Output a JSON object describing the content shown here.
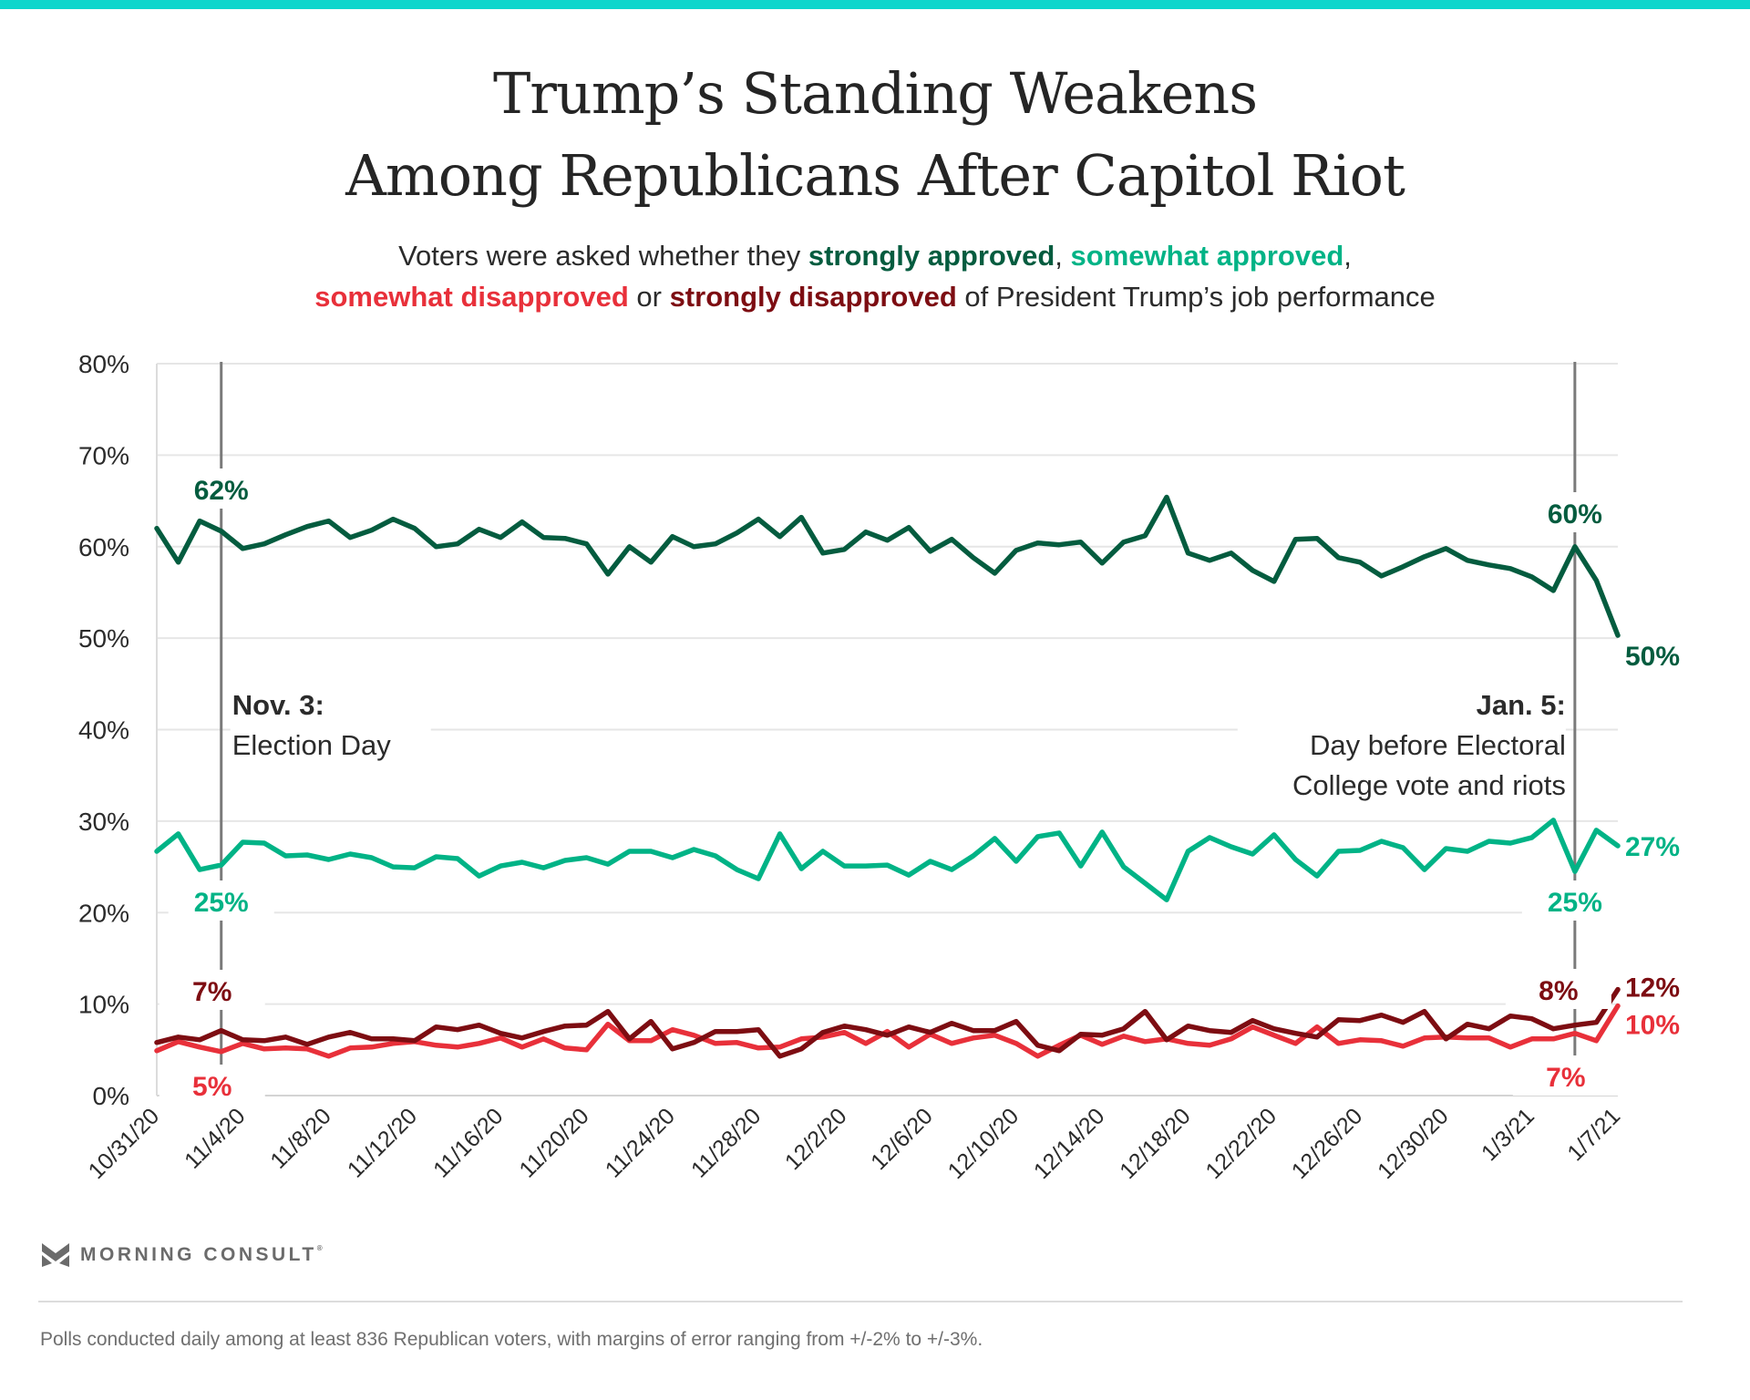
{
  "header": {
    "title_lines": [
      "Trump’s Standing Weakens",
      "Among Republicans After Capitol Riot"
    ],
    "subtitle": {
      "line1_prefix": "Voters were asked whether they ",
      "strongly_approved": "strongly approved",
      "comma1": ", ",
      "somewhat_approved": "somewhat approved",
      "comma2": ",",
      "somewhat_disapproved": "somewhat disapproved",
      "or": " or ",
      "strongly_disapproved": "strongly disapproved",
      "line2_suffix": " of President Trump’s job performance"
    }
  },
  "colors": {
    "accent_bar": "#0fd6cc",
    "strongly_approve": "#045c3f",
    "somewhat_approve": "#00b386",
    "somewhat_disapprove": "#e8303a",
    "strongly_disapprove": "#7d0d12",
    "annotation_line": "#7a7a7a",
    "grid": "#e6e6e6"
  },
  "chart_data": {
    "type": "line",
    "title": "Trump’s Standing Weakens Among Republicans After Capitol Riot",
    "xlabel": "",
    "ylabel": "",
    "ylim": [
      0,
      80
    ],
    "yticks": [
      0,
      10,
      20,
      30,
      40,
      50,
      60,
      70,
      80
    ],
    "ytick_labels": [
      "0%",
      "10%",
      "20%",
      "30%",
      "40%",
      "50%",
      "60%",
      "70%",
      "80%"
    ],
    "grid": true,
    "x_start": "10/31/20",
    "x_end": "1/7/21",
    "x_tick_every_n_points": 4,
    "x_tick_labels": [
      "10/31/20",
      "11/4/20",
      "11/8/20",
      "11/12/20",
      "11/16/20",
      "11/20/20",
      "11/24/20",
      "11/28/20",
      "12/2/20",
      "12/6/20",
      "12/10/20",
      "12/14/20",
      "12/18/20",
      "12/22/20",
      "12/26/20",
      "12/30/20",
      "1/3/21",
      "1/7/21"
    ],
    "series": [
      {
        "name": "Strongly approve",
        "key": "strongly_approve",
        "values": [
          62.0,
          58.3,
          62.8,
          61.7,
          59.8,
          60.3,
          61.3,
          62.2,
          62.8,
          61.0,
          61.8,
          63.0,
          62.0,
          60.0,
          60.3,
          61.9,
          61.0,
          62.7,
          61.0,
          60.9,
          60.3,
          57.0,
          60.0,
          58.3,
          61.1,
          60.0,
          60.3,
          61.5,
          63.0,
          61.1,
          63.2,
          59.3,
          59.7,
          61.6,
          60.7,
          62.1,
          59.5,
          60.8,
          58.8,
          57.1,
          59.6,
          60.4,
          60.2,
          60.5,
          58.2,
          60.5,
          61.2,
          65.4,
          59.3,
          58.5,
          59.3,
          57.4,
          56.2,
          60.8,
          60.9,
          58.8,
          58.3,
          56.8,
          57.8,
          58.9,
          59.8,
          58.5,
          58.0,
          57.6,
          56.7,
          55.2,
          60.0,
          56.3,
          50.3
        ]
      },
      {
        "name": "Somewhat approve",
        "key": "somewhat_approve",
        "values": [
          26.7,
          28.6,
          24.7,
          25.2,
          27.7,
          27.6,
          26.2,
          26.3,
          25.8,
          26.4,
          26.0,
          25.0,
          24.9,
          26.1,
          25.9,
          24.0,
          25.1,
          25.5,
          24.9,
          25.7,
          26.0,
          25.3,
          26.7,
          26.7,
          26.0,
          26.9,
          26.2,
          24.7,
          23.7,
          28.6,
          24.8,
          26.7,
          25.1,
          25.1,
          25.2,
          24.1,
          25.6,
          24.7,
          26.2,
          28.1,
          25.6,
          28.3,
          28.7,
          25.1,
          28.8,
          25.0,
          23.2,
          21.4,
          26.7,
          28.2,
          27.2,
          26.4,
          28.5,
          25.8,
          24.0,
          26.7,
          26.8,
          27.8,
          27.1,
          24.7,
          27.0,
          26.7,
          27.8,
          27.6,
          28.2,
          30.1,
          24.5,
          29.0,
          27.3
        ]
      },
      {
        "name": "Somewhat disapprove",
        "key": "somewhat_disapprove",
        "values": [
          4.9,
          5.9,
          5.3,
          4.8,
          5.7,
          5.1,
          5.2,
          5.1,
          4.3,
          5.2,
          5.3,
          5.7,
          5.9,
          5.5,
          5.3,
          5.7,
          6.3,
          5.3,
          6.2,
          5.2,
          5.0,
          7.8,
          6.0,
          6.0,
          7.2,
          6.6,
          5.7,
          5.8,
          5.2,
          5.3,
          6.2,
          6.4,
          6.9,
          5.7,
          7.0,
          5.3,
          6.7,
          5.7,
          6.3,
          6.6,
          5.7,
          4.3,
          5.5,
          6.6,
          5.6,
          6.5,
          5.9,
          6.2,
          5.7,
          5.5,
          6.2,
          7.5,
          6.6,
          5.7,
          7.5,
          5.7,
          6.1,
          6.0,
          5.4,
          6.3,
          6.4,
          6.3,
          6.3,
          5.3,
          6.2,
          6.2,
          6.8,
          6.0,
          9.8
        ]
      },
      {
        "name": "Strongly disapprove",
        "key": "strongly_disapprove",
        "values": [
          5.8,
          6.4,
          6.1,
          7.1,
          6.1,
          6.0,
          6.4,
          5.6,
          6.4,
          6.9,
          6.2,
          6.2,
          6.0,
          7.5,
          7.2,
          7.7,
          6.8,
          6.3,
          7.0,
          7.6,
          7.7,
          9.2,
          6.2,
          8.1,
          5.1,
          5.8,
          7.0,
          7.0,
          7.2,
          4.3,
          5.1,
          6.9,
          7.6,
          7.2,
          6.6,
          7.5,
          6.9,
          7.9,
          7.1,
          7.1,
          8.1,
          5.5,
          4.9,
          6.7,
          6.6,
          7.3,
          9.2,
          6.1,
          7.6,
          7.1,
          6.9,
          8.2,
          7.3,
          6.8,
          6.4,
          8.3,
          8.2,
          8.8,
          8.0,
          9.2,
          6.2,
          7.8,
          7.3,
          8.7,
          8.4,
          7.3,
          7.7,
          8.0,
          11.6
        ]
      }
    ],
    "annotations": [
      {
        "date": "11/3/20",
        "point_index": 3,
        "bold": "Nov. 3:",
        "lines": [
          "Election Day"
        ],
        "align": "left"
      },
      {
        "date": "1/5/21",
        "point_index": 66,
        "bold": "Jan. 5:",
        "lines": [
          "Day before Electoral",
          "College vote and riots"
        ],
        "align": "right"
      }
    ],
    "data_labels": [
      {
        "series": "strongly_approve",
        "point_index": 3,
        "text": "62%",
        "position": "above"
      },
      {
        "series": "somewhat_approve",
        "point_index": 3,
        "text": "25%",
        "position": "below"
      },
      {
        "series": "strongly_disapprove",
        "point_index": 3,
        "text": "7%",
        "position": "above"
      },
      {
        "series": "somewhat_disapprove",
        "point_index": 3,
        "text": "5%",
        "position": "below"
      },
      {
        "series": "strongly_approve",
        "point_index": 66,
        "text": "60%",
        "position": "above"
      },
      {
        "series": "somewhat_approve",
        "point_index": 66,
        "text": "25%",
        "position": "below"
      },
      {
        "series": "strongly_disapprove",
        "point_index": 66,
        "text": "8%",
        "position": "above"
      },
      {
        "series": "somewhat_disapprove",
        "point_index": 66,
        "text": "7%",
        "position": "below"
      },
      {
        "series": "strongly_approve",
        "point_index": 68,
        "text": "50%",
        "position": "right"
      },
      {
        "series": "somewhat_approve",
        "point_index": 68,
        "text": "27%",
        "position": "right"
      },
      {
        "series": "strongly_disapprove",
        "point_index": 68,
        "text": "12%",
        "position": "right"
      },
      {
        "series": "somewhat_disapprove",
        "point_index": 68,
        "text": "10%",
        "position": "right"
      }
    ],
    "legend": "none (series named in colored subtitle)"
  },
  "footer": {
    "brand": "MORNING CONSULT",
    "brand_mark": "®",
    "note": "Polls conducted daily among at least 836 Republican voters, with margins of error ranging from +/-2% to +/-3%."
  }
}
